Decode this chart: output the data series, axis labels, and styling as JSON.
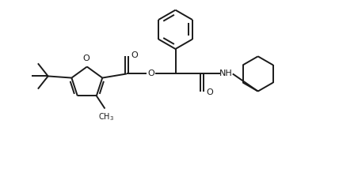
{
  "background": "#ffffff",
  "line_color": "#1a1a1a",
  "line_width": 1.4,
  "font_size": 8.0,
  "figsize": [
    4.28,
    2.14
  ],
  "dpi": 100,
  "xlim": [
    0,
    10
  ],
  "ylim": [
    0,
    5
  ]
}
